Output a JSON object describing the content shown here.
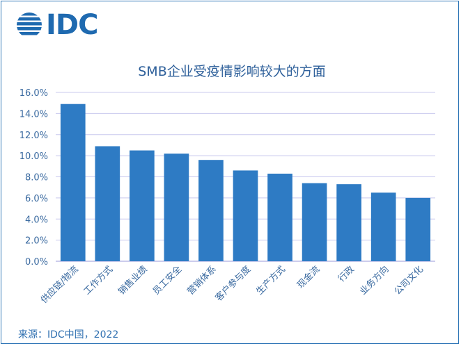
{
  "logo": {
    "text": "IDC",
    "icon": "idc-globe-icon"
  },
  "source": "来源：IDC中国，2022",
  "colors": {
    "bar": "#2e7bc4",
    "title": "#2d5f9a",
    "axis_text": "#3a6aa0",
    "grid": "#c8c8ee",
    "frame": "#2e75b6"
  },
  "chart_data": {
    "type": "bar",
    "title": "SMB企业受疫情影响较大的方面",
    "xlabel": "",
    "ylabel": "",
    "categories": [
      "供应链/物流",
      "工作方式",
      "销售业绩",
      "员工安全",
      "营销体系",
      "客户参与度",
      "生产方式",
      "现金流",
      "行政",
      "业务方向",
      "公司文化"
    ],
    "values": [
      14.9,
      10.9,
      10.5,
      10.2,
      9.6,
      8.6,
      8.3,
      7.4,
      7.3,
      6.5,
      6.0
    ],
    "ylim": [
      0,
      16
    ],
    "yticks": [
      "0.0%",
      "2.0%",
      "4.0%",
      "6.0%",
      "8.0%",
      "10.0%",
      "12.0%",
      "14.0%",
      "16.0%"
    ],
    "grid": true,
    "legend": "none"
  }
}
